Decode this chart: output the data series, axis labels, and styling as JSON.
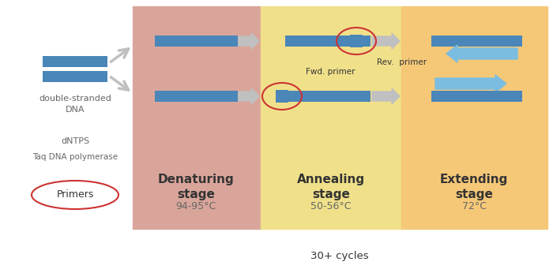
{
  "fig_width": 7.0,
  "fig_height": 3.46,
  "dpi": 100,
  "bg_color": "#ffffff",
  "dna_strand_color": "#4a86b8",
  "arrow_gray": "#c0c0c0",
  "arrow_blue": "#7bbde0",
  "denaturing_bg": "#d9a59a",
  "annealing_bg": "#f0e08a",
  "extending_bg": "#f5c878",
  "stage_title_color": "#333333",
  "stage_temp_color": "#666666",
  "left_text_color": "#666666",
  "primer_ellipse_color": "#cc3333",
  "cycles_text": "30+ cycles",
  "primers_label": "Primers",
  "rev_primer_label": "Rev.  primer",
  "fwd_primer_label": "Fwd. primer",
  "stage_names": [
    "Denaturing\nstage",
    "Annealing\nstage",
    "Extending\nstage"
  ],
  "stage_temps": [
    "94-95°C",
    "50-56°C",
    "72°C"
  ]
}
